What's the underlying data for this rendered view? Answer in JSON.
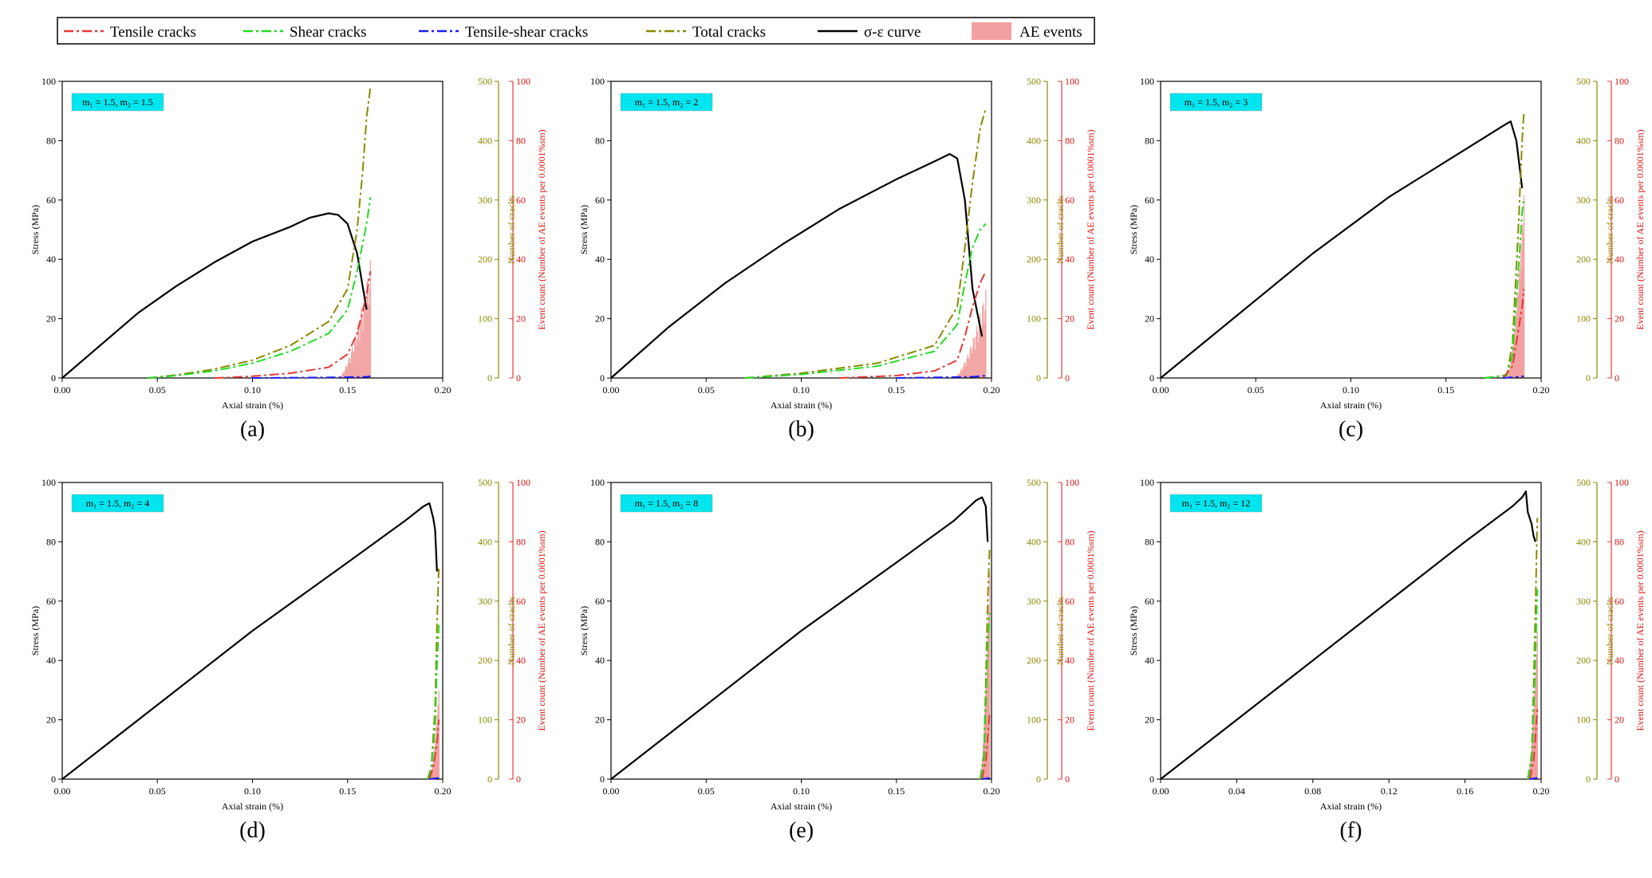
{
  "legend": {
    "items": [
      {
        "label": "Tensile cracks",
        "color": "#e53935",
        "style": "dashdot"
      },
      {
        "label": "Shear cracks",
        "color": "#22dd22",
        "style": "dashdot"
      },
      {
        "label": "Tensile-shear cracks",
        "color": "#1a1aff",
        "style": "dashdot"
      },
      {
        "label": "Total cracks",
        "color": "#8a8a00",
        "style": "dashdot"
      },
      {
        "label": "σ-ε curve",
        "color": "#000000",
        "style": "solid"
      },
      {
        "label": "AE events",
        "color": "#f2a0a0",
        "style": "bar"
      }
    ]
  },
  "axes_text": {
    "stress_label": "Stress (MPa)",
    "cracks_label": "Number of cracks",
    "events_label": "Event count (Number of AE events per 0.0001%sm)",
    "strain_label": "Axial strain (%)"
  },
  "colors": {
    "stress": "#000000",
    "tensile": "#e53935",
    "shear": "#22dd22",
    "tensile_shear": "#1a1aff",
    "total": "#8a8a00",
    "ae": "#f2a0a0",
    "tag_bg": "#00e5ee"
  },
  "chart_data": [
    {
      "type": "line",
      "panel": "(a)",
      "tag": "m₁ = 1.5, m₂ = 1.5",
      "xlim": [
        0,
        0.2
      ],
      "xticks": [
        "0.00",
        "0.05",
        "0.10",
        "0.15",
        "0.20"
      ],
      "ylim_stress": [
        0,
        100
      ],
      "ylim_cracks": [
        0,
        500
      ],
      "ylim_events": [
        0,
        100
      ],
      "series": [
        {
          "key": "stress",
          "axis": "stress",
          "x": [
            0,
            0.02,
            0.04,
            0.06,
            0.08,
            0.1,
            0.12,
            0.13,
            0.14,
            0.145,
            0.15,
            0.155,
            0.16
          ],
          "y": [
            0,
            11,
            22,
            31,
            39,
            46,
            51,
            54,
            55.5,
            55,
            52,
            42,
            23
          ]
        },
        {
          "key": "total",
          "axis": "cracks",
          "x": [
            0.045,
            0.06,
            0.08,
            0.1,
            0.12,
            0.14,
            0.15,
            0.155,
            0.158,
            0.16,
            0.162
          ],
          "y": [
            0,
            5,
            15,
            30,
            55,
            95,
            150,
            250,
            350,
            440,
            490
          ]
        },
        {
          "key": "shear",
          "axis": "cracks",
          "x": [
            0.045,
            0.06,
            0.08,
            0.1,
            0.12,
            0.14,
            0.15,
            0.155,
            0.16,
            0.162
          ],
          "y": [
            0,
            4,
            12,
            25,
            45,
            75,
            115,
            180,
            260,
            305
          ]
        },
        {
          "key": "tensile",
          "axis": "cracks",
          "x": [
            0.08,
            0.1,
            0.12,
            0.14,
            0.15,
            0.155,
            0.16,
            0.162
          ],
          "y": [
            0,
            3,
            8,
            18,
            40,
            75,
            140,
            180
          ]
        },
        {
          "key": "tensile_shear",
          "axis": "cracks",
          "x": [
            0.1,
            0.14,
            0.16,
            0.162
          ],
          "y": [
            0,
            1,
            2,
            3
          ]
        }
      ],
      "ae": {
        "x_start": 0.145,
        "x_end": 0.162,
        "peak": 40
      }
    },
    {
      "type": "line",
      "panel": "(b)",
      "tag": "m₁ = 1.5, m₂ = 2",
      "xlim": [
        0,
        0.2
      ],
      "xticks": [
        "0.00",
        "0.05",
        "0.10",
        "0.15",
        "0.20"
      ],
      "ylim_stress": [
        0,
        100
      ],
      "ylim_cracks": [
        0,
        500
      ],
      "ylim_events": [
        0,
        100
      ],
      "series": [
        {
          "key": "stress",
          "axis": "stress",
          "x": [
            0,
            0.03,
            0.06,
            0.09,
            0.12,
            0.15,
            0.17,
            0.178,
            0.182,
            0.186,
            0.19,
            0.195
          ],
          "y": [
            0,
            17,
            32,
            45,
            57,
            67,
            73,
            75.5,
            74,
            60,
            30,
            14
          ]
        },
        {
          "key": "total",
          "axis": "cracks",
          "x": [
            0.07,
            0.1,
            0.14,
            0.17,
            0.182,
            0.186,
            0.19,
            0.194,
            0.197
          ],
          "y": [
            0,
            8,
            25,
            55,
            120,
            220,
            330,
            420,
            455
          ]
        },
        {
          "key": "shear",
          "axis": "cracks",
          "x": [
            0.07,
            0.1,
            0.14,
            0.17,
            0.182,
            0.186,
            0.19,
            0.194,
            0.197
          ],
          "y": [
            0,
            6,
            20,
            45,
            90,
            160,
            220,
            250,
            260
          ]
        },
        {
          "key": "tensile",
          "axis": "cracks",
          "x": [
            0.12,
            0.15,
            0.17,
            0.182,
            0.186,
            0.19,
            0.194,
            0.197
          ],
          "y": [
            0,
            4,
            12,
            30,
            70,
            120,
            160,
            180
          ]
        },
        {
          "key": "tensile_shear",
          "axis": "cracks",
          "x": [
            0.15,
            0.19,
            0.197
          ],
          "y": [
            0,
            2,
            4
          ]
        }
      ],
      "ae": {
        "x_start": 0.18,
        "x_end": 0.197,
        "peak": 30
      }
    },
    {
      "type": "line",
      "panel": "(c)",
      "tag": "m₁ = 1.5, m₂ = 3",
      "xlim": [
        0,
        0.2
      ],
      "xticks": [
        "0.00",
        "0.05",
        "0.10",
        "0.15",
        "0.20"
      ],
      "ylim_stress": [
        0,
        100
      ],
      "ylim_cracks": [
        0,
        500
      ],
      "ylim_events": [
        0,
        100
      ],
      "series": [
        {
          "key": "stress",
          "axis": "stress",
          "x": [
            0,
            0.04,
            0.08,
            0.12,
            0.15,
            0.17,
            0.18,
            0.184,
            0.187,
            0.19
          ],
          "y": [
            0,
            21,
            42,
            61,
            73,
            81,
            85,
            86.5,
            80,
            64
          ]
        },
        {
          "key": "total",
          "axis": "cracks",
          "x": [
            0.17,
            0.182,
            0.185,
            0.188,
            0.19,
            0.191
          ],
          "y": [
            0,
            5,
            60,
            250,
            400,
            450
          ]
        },
        {
          "key": "shear",
          "axis": "cracks",
          "x": [
            0.17,
            0.182,
            0.185,
            0.188,
            0.19,
            0.191
          ],
          "y": [
            0,
            4,
            40,
            180,
            280,
            300
          ]
        },
        {
          "key": "tensile",
          "axis": "cracks",
          "x": [
            0.18,
            0.185,
            0.188,
            0.19,
            0.191
          ],
          "y": [
            0,
            20,
            80,
            120,
            150
          ]
        },
        {
          "key": "tensile_shear",
          "axis": "cracks",
          "x": [
            0.18,
            0.191
          ],
          "y": [
            0,
            3
          ]
        }
      ],
      "ae": {
        "x_start": 0.182,
        "x_end": 0.191,
        "peak": 62
      }
    },
    {
      "type": "line",
      "panel": "(d)",
      "tag": "m₁ = 1.5, m₂ = 4",
      "xlim": [
        0,
        0.2
      ],
      "xticks": [
        "0.00",
        "0.05",
        "0.10",
        "0.15",
        "0.20"
      ],
      "ylim_stress": [
        0,
        100
      ],
      "ylim_cracks": [
        0,
        500
      ],
      "ylim_events": [
        0,
        100
      ],
      "series": [
        {
          "key": "stress",
          "axis": "stress",
          "x": [
            0,
            0.05,
            0.1,
            0.15,
            0.18,
            0.19,
            0.193,
            0.195,
            0.196,
            0.197
          ],
          "y": [
            0,
            25,
            50,
            73,
            87,
            92,
            93,
            88,
            84,
            70
          ]
        },
        {
          "key": "total",
          "axis": "cracks",
          "x": [
            0.192,
            0.194,
            0.196,
            0.197,
            0.198
          ],
          "y": [
            0,
            20,
            120,
            260,
            360
          ]
        },
        {
          "key": "shear",
          "axis": "cracks",
          "x": [
            0.192,
            0.194,
            0.196,
            0.197,
            0.198
          ],
          "y": [
            0,
            15,
            90,
            190,
            260
          ]
        },
        {
          "key": "tensile",
          "axis": "cracks",
          "x": [
            0.193,
            0.195,
            0.197,
            0.198
          ],
          "y": [
            0,
            20,
            60,
            100
          ]
        },
        {
          "key": "tensile_shear",
          "axis": "cracks",
          "x": [
            0.193,
            0.198
          ],
          "y": [
            0,
            2
          ]
        }
      ],
      "ae": {
        "x_start": 0.193,
        "x_end": 0.198,
        "peak": 30
      }
    },
    {
      "type": "line",
      "panel": "(e)",
      "tag": "m₁ = 1.5, m₂ = 8",
      "xlim": [
        0,
        0.2
      ],
      "xticks": [
        "0.00",
        "0.05",
        "0.10",
        "0.15",
        "0.20"
      ],
      "ylim_stress": [
        0,
        100
      ],
      "ylim_cracks": [
        0,
        500
      ],
      "ylim_events": [
        0,
        100
      ],
      "series": [
        {
          "key": "stress",
          "axis": "stress",
          "x": [
            0,
            0.05,
            0.1,
            0.15,
            0.18,
            0.192,
            0.195,
            0.197,
            0.198
          ],
          "y": [
            0,
            25,
            50,
            73,
            87,
            94,
            95,
            92,
            80
          ]
        },
        {
          "key": "total",
          "axis": "cracks",
          "x": [
            0.194,
            0.196,
            0.197,
            0.198,
            0.199
          ],
          "y": [
            0,
            40,
            160,
            300,
            390
          ]
        },
        {
          "key": "shear",
          "axis": "cracks",
          "x": [
            0.194,
            0.196,
            0.197,
            0.198,
            0.199
          ],
          "y": [
            0,
            30,
            120,
            220,
            280
          ]
        },
        {
          "key": "tensile",
          "axis": "cracks",
          "x": [
            0.195,
            0.197,
            0.198,
            0.199
          ],
          "y": [
            0,
            30,
            70,
            110
          ]
        },
        {
          "key": "tensile_shear",
          "axis": "cracks",
          "x": [
            0.195,
            0.199
          ],
          "y": [
            0,
            2
          ]
        }
      ],
      "ae": {
        "x_start": 0.194,
        "x_end": 0.199,
        "peak": 70
      }
    },
    {
      "type": "line",
      "panel": "(f)",
      "tag": "m₁ = 1.5, m₂ = 12",
      "xlim": [
        0,
        0.2
      ],
      "xticks": [
        "0.00",
        "0.04",
        "0.08",
        "0.12",
        "0.16",
        "0.20"
      ],
      "ylim_stress": [
        0,
        100
      ],
      "ylim_cracks": [
        0,
        500
      ],
      "ylim_events": [
        0,
        100
      ],
      "series": [
        {
          "key": "stress",
          "axis": "stress",
          "x": [
            0,
            0.04,
            0.08,
            0.12,
            0.16,
            0.185,
            0.19,
            0.192,
            0.193,
            0.195,
            0.196,
            0.197
          ],
          "y": [
            0,
            20,
            40,
            60,
            80,
            92,
            95,
            97,
            90,
            86,
            82,
            80
          ]
        },
        {
          "key": "total",
          "axis": "cracks",
          "x": [
            0.193,
            0.195,
            0.196,
            0.197,
            0.198
          ],
          "y": [
            0,
            40,
            150,
            280,
            440
          ]
        },
        {
          "key": "shear",
          "axis": "cracks",
          "x": [
            0.193,
            0.195,
            0.196,
            0.197,
            0.198
          ],
          "y": [
            0,
            30,
            110,
            200,
            320
          ]
        },
        {
          "key": "tensile",
          "axis": "cracks",
          "x": [
            0.194,
            0.196,
            0.197,
            0.198
          ],
          "y": [
            0,
            30,
            70,
            120
          ]
        },
        {
          "key": "tensile_shear",
          "axis": "cracks",
          "x": [
            0.194,
            0.198
          ],
          "y": [
            0,
            2
          ]
        }
      ],
      "ae": {
        "x_start": 0.193,
        "x_end": 0.198,
        "peak": 50
      }
    }
  ]
}
